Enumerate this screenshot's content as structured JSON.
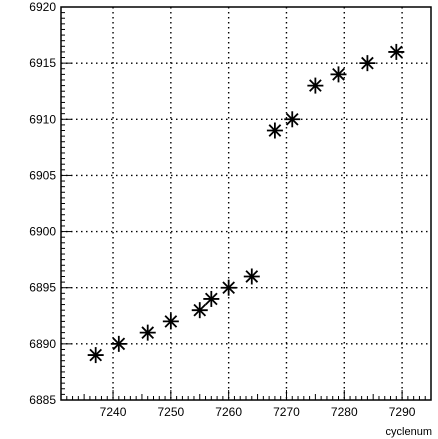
{
  "chart_data": {
    "type": "scatter",
    "title": "",
    "xlabel": "cyclenum",
    "ylabel": "",
    "xlim": [
      7231,
      7295
    ],
    "ylim": [
      6885,
      6920
    ],
    "grid": true,
    "legend": "none",
    "marker": "asterisk",
    "marker_color": "#000000",
    "x_ticks": [
      7240,
      7250,
      7260,
      7270,
      7280,
      7290
    ],
    "y_ticks": [
      6885,
      6890,
      6895,
      6900,
      6905,
      6910,
      6915,
      6920
    ],
    "x_tick_labels": [
      "7240",
      "7250",
      "7260",
      "7270",
      "7280",
      "7290"
    ],
    "y_tick_labels": [
      "6885",
      "6890",
      "6895",
      "6900",
      "6905",
      "6910",
      "6915",
      "6920"
    ],
    "series": [
      {
        "points": [
          {
            "x": 7237,
            "y": 6889
          },
          {
            "x": 7241,
            "y": 6890
          },
          {
            "x": 7246,
            "y": 6891
          },
          {
            "x": 7250,
            "y": 6892
          },
          {
            "x": 7255,
            "y": 6893
          },
          {
            "x": 7257,
            "y": 6894
          },
          {
            "x": 7260,
            "y": 6895
          },
          {
            "x": 7264,
            "y": 6896
          },
          {
            "x": 7268,
            "y": 6909
          },
          {
            "x": 7271,
            "y": 6910
          },
          {
            "x": 7275,
            "y": 6913
          },
          {
            "x": 7279,
            "y": 6914
          },
          {
            "x": 7284,
            "y": 6915
          },
          {
            "x": 7289,
            "y": 6916
          }
        ]
      }
    ]
  }
}
